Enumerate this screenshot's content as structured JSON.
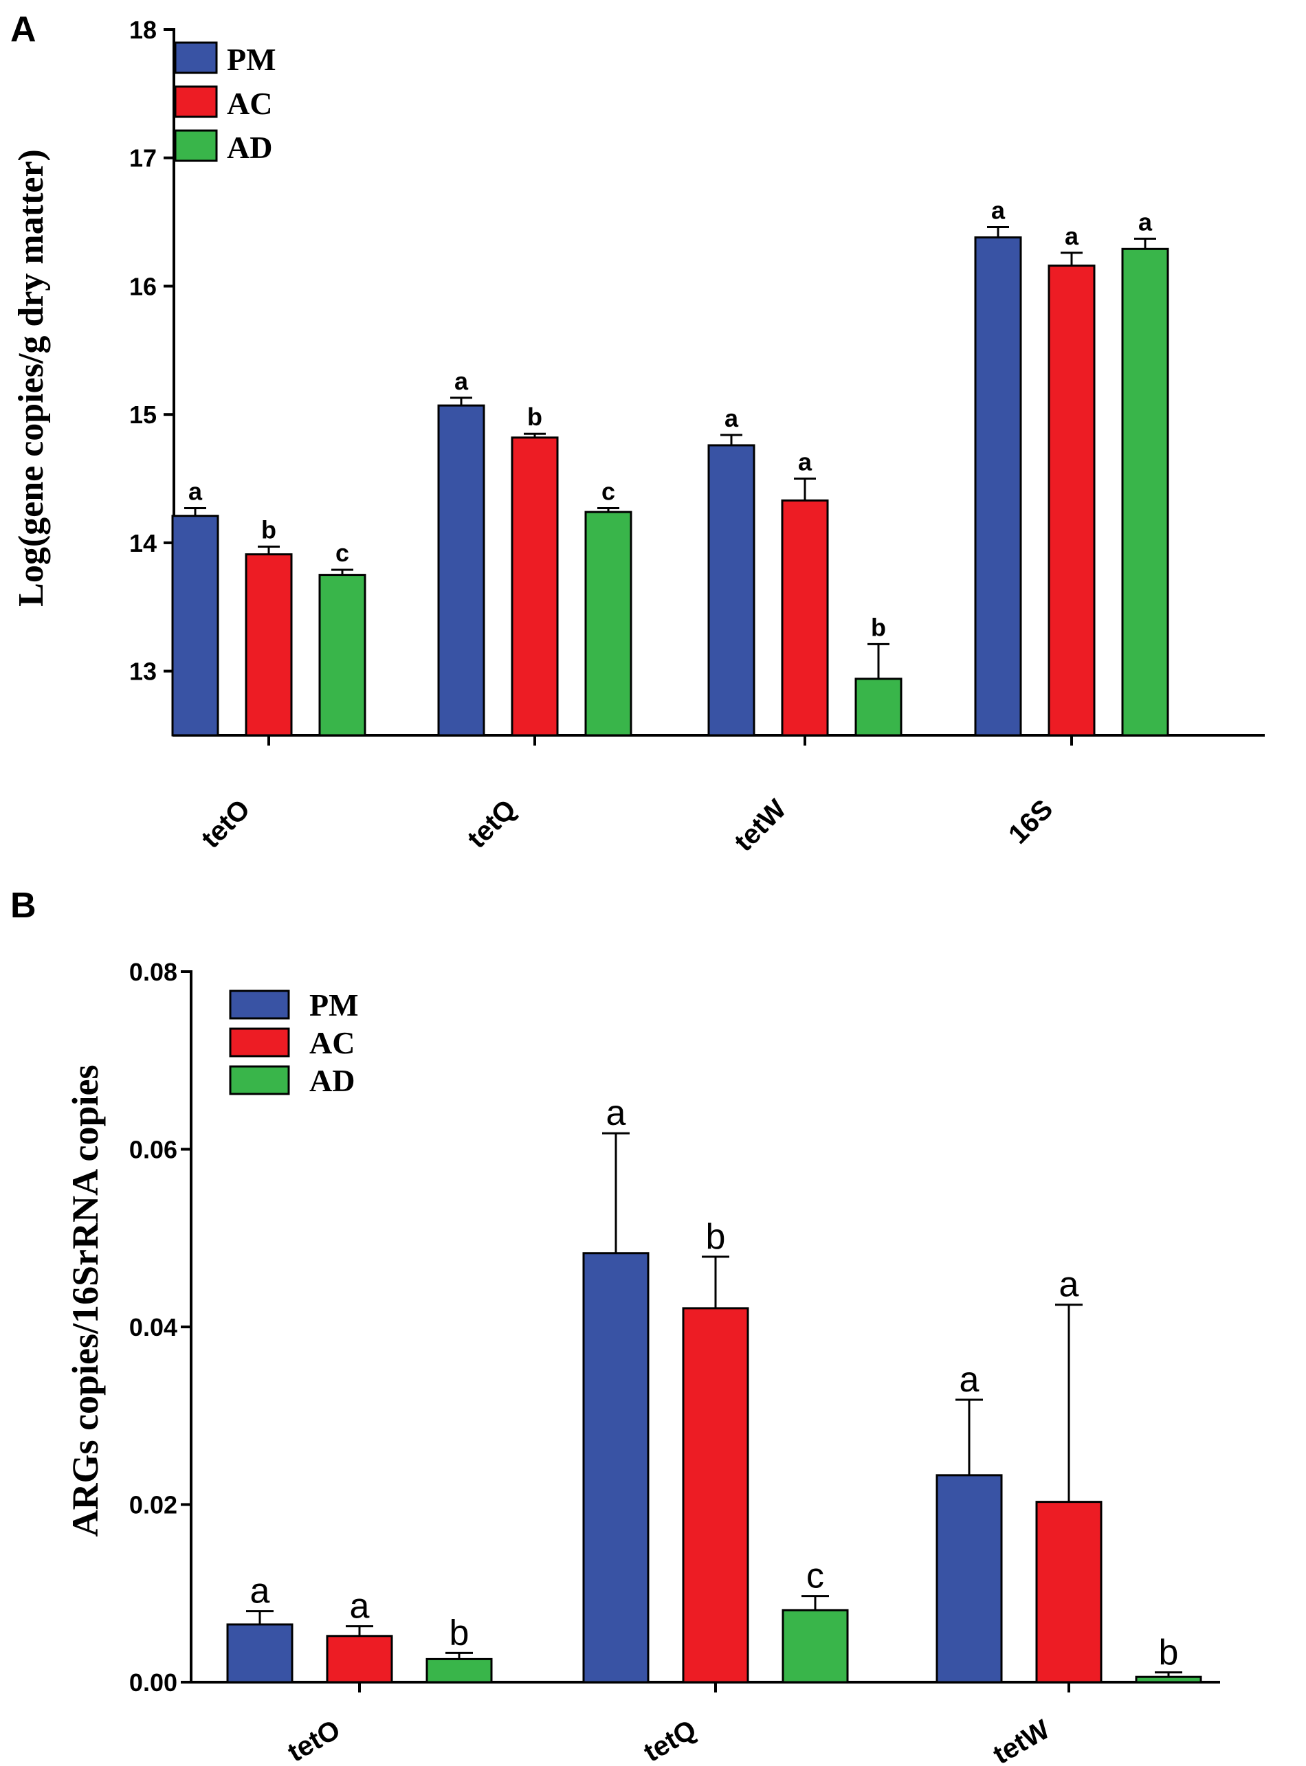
{
  "chart_data": [
    {
      "panel": "A",
      "type": "bar",
      "title": "",
      "xlabel": "",
      "ylabel": "Log(gene copies/g dry matter)",
      "ylim": [
        12.5,
        18
      ],
      "yticks": [
        "13",
        "14",
        "15",
        "16",
        "17",
        "18"
      ],
      "categories": [
        "tetO",
        "tetQ",
        "tetW",
        "16S"
      ],
      "series": [
        {
          "name": "PM",
          "color": "#3953a4",
          "values": [
            14.21,
            15.07,
            14.76,
            16.38
          ],
          "errors": [
            0.06,
            0.06,
            0.08,
            0.08
          ],
          "letters": [
            "a",
            "a",
            "a",
            "a"
          ]
        },
        {
          "name": "AC",
          "color": "#ed1c24",
          "values": [
            13.91,
            14.82,
            14.33,
            16.16
          ],
          "errors": [
            0.06,
            0.03,
            0.17,
            0.1
          ],
          "letters": [
            "b",
            "b",
            "a",
            "a"
          ]
        },
        {
          "name": "AD",
          "color": "#39b54a",
          "values": [
            13.75,
            14.24,
            12.94,
            16.29
          ],
          "errors": [
            0.04,
            0.03,
            0.27,
            0.08
          ],
          "letters": [
            "c",
            "c",
            "b",
            "a"
          ]
        }
      ],
      "legend": [
        "PM",
        "AC",
        "AD"
      ]
    },
    {
      "panel": "B",
      "type": "bar",
      "title": "",
      "xlabel": "",
      "ylabel": "ARGs copies/16SrRNA copies",
      "ylim": [
        0,
        0.08
      ],
      "yticks": [
        "0.00",
        "0.02",
        "0.04",
        "0.06",
        "0.08"
      ],
      "categories": [
        "tetO",
        "tetQ",
        "tetW"
      ],
      "series": [
        {
          "name": "PM",
          "color": "#3953a4",
          "values": [
            0.0065,
            0.0483,
            0.0233
          ],
          "errors": [
            0.0015,
            0.0135,
            0.0085
          ],
          "letters": [
            "a",
            "a",
            "a"
          ]
        },
        {
          "name": "AC",
          "color": "#ed1c24",
          "values": [
            0.0052,
            0.0421,
            0.0203
          ],
          "errors": [
            0.0011,
            0.0058,
            0.0222
          ],
          "letters": [
            "a",
            "b",
            "a"
          ]
        },
        {
          "name": "AD",
          "color": "#39b54a",
          "values": [
            0.0026,
            0.0081,
            0.0006
          ],
          "errors": [
            0.0007,
            0.0016,
            0.0005
          ],
          "letters": [
            "b",
            "c",
            "b"
          ]
        }
      ],
      "legend": [
        "PM",
        "AC",
        "AD"
      ]
    }
  ]
}
